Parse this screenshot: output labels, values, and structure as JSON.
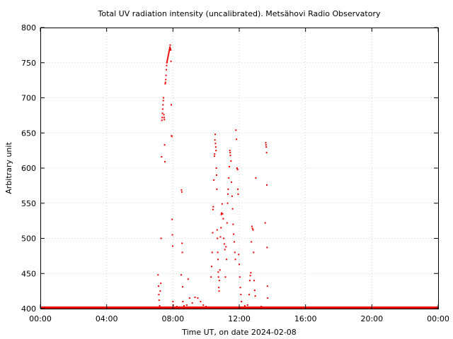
{
  "chart_data": {
    "type": "scatter",
    "title": "Total UV radiation intensity (uncalibrated). Metsähovi Radio Observatory",
    "xlabel": "Time UT, on date 2024-02-08",
    "ylabel": "Arbitrary unit",
    "xlim": [
      "00:00",
      "24:00"
    ],
    "ylim": [
      400,
      800
    ],
    "grid": true,
    "x_ticks": [
      "00:00",
      "04:00",
      "08:00",
      "12:00",
      "16:00",
      "20:00",
      "00:00"
    ],
    "y_ticks": [
      "400",
      "450",
      "500",
      "550",
      "600",
      "650",
      "700",
      "750",
      "800"
    ],
    "series": [
      {
        "color": "#ee0000",
        "baseline": {
          "value": 400,
          "from": "00:00",
          "to": "24:00"
        },
        "points": [
          [
            "07:06",
            448
          ],
          [
            "07:08",
            432
          ],
          [
            "07:09",
            420
          ],
          [
            "07:10",
            412
          ],
          [
            "07:12",
            404
          ],
          [
            "07:14",
            425
          ],
          [
            "07:16",
            436
          ],
          [
            "07:17",
            500
          ],
          [
            "07:19",
            616
          ],
          [
            "07:20",
            668
          ],
          [
            "07:21",
            672
          ],
          [
            "07:22",
            678
          ],
          [
            "07:23",
            684
          ],
          [
            "07:24",
            690
          ],
          [
            "07:25",
            696
          ],
          [
            "07:26",
            700
          ],
          [
            "07:27",
            676
          ],
          [
            "07:28",
            672
          ],
          [
            "07:29",
            669
          ],
          [
            "07:30",
            633
          ],
          [
            "07:31",
            609
          ],
          [
            "07:32",
            720
          ],
          [
            "07:33",
            722
          ],
          [
            "07:34",
            726
          ],
          [
            "07:35",
            732
          ],
          [
            "07:36",
            740
          ],
          [
            "07:37",
            746
          ],
          [
            "07:38",
            750
          ],
          [
            "07:39",
            752
          ],
          [
            "07:40",
            754
          ],
          [
            "07:41",
            756
          ],
          [
            "07:42",
            758
          ],
          [
            "07:43",
            760
          ],
          [
            "07:44",
            762
          ],
          [
            "07:45",
            764
          ],
          [
            "07:46",
            766
          ],
          [
            "07:47",
            768
          ],
          [
            "07:48",
            770
          ],
          [
            "07:49",
            772
          ],
          [
            "07:50",
            775
          ],
          [
            "07:51",
            770
          ],
          [
            "07:52",
            768
          ],
          [
            "07:53",
            752
          ],
          [
            "07:54",
            690
          ],
          [
            "07:55",
            646
          ],
          [
            "07:56",
            645
          ],
          [
            "07:57",
            527
          ],
          [
            "07:58",
            505
          ],
          [
            "07:59",
            489
          ],
          [
            "08:00",
            410
          ],
          [
            "08:01",
            405
          ],
          [
            "08:10",
            402
          ],
          [
            "08:14",
            403
          ],
          [
            "08:30",
            448
          ],
          [
            "08:31",
            569
          ],
          [
            "08:32",
            566
          ],
          [
            "08:33",
            493
          ],
          [
            "08:34",
            480
          ],
          [
            "08:35",
            431
          ],
          [
            "08:36",
            410
          ],
          [
            "08:40",
            404
          ],
          [
            "08:50",
            405
          ],
          [
            "08:55",
            442
          ],
          [
            "09:00",
            415
          ],
          [
            "09:10",
            408
          ],
          [
            "09:20",
            416
          ],
          [
            "09:30",
            415
          ],
          [
            "09:40",
            410
          ],
          [
            "09:50",
            405
          ],
          [
            "10:00",
            403
          ],
          [
            "10:10",
            402
          ],
          [
            "10:18",
            445
          ],
          [
            "10:20",
            460
          ],
          [
            "10:22",
            480
          ],
          [
            "10:24",
            508
          ],
          [
            "10:25",
            541
          ],
          [
            "10:26",
            545
          ],
          [
            "10:28",
            583
          ],
          [
            "10:30",
            617
          ],
          [
            "10:31",
            620
          ],
          [
            "10:32",
            640
          ],
          [
            "10:33",
            648
          ],
          [
            "10:34",
            635
          ],
          [
            "10:35",
            630
          ],
          [
            "10:36",
            625
          ],
          [
            "10:37",
            600
          ],
          [
            "10:38",
            590
          ],
          [
            "10:39",
            570
          ],
          [
            "10:40",
            512
          ],
          [
            "10:41",
            500
          ],
          [
            "10:42",
            480
          ],
          [
            "10:43",
            470
          ],
          [
            "10:44",
            452
          ],
          [
            "10:45",
            445
          ],
          [
            "10:46",
            430
          ],
          [
            "10:47",
            425
          ],
          [
            "10:48",
            440
          ],
          [
            "10:50",
            455
          ],
          [
            "10:52",
            502
          ],
          [
            "10:54",
            515
          ],
          [
            "10:55",
            534
          ],
          [
            "10:56",
            536
          ],
          [
            "10:58",
            549
          ],
          [
            "11:00",
            535
          ],
          [
            "11:02",
            528
          ],
          [
            "11:04",
            500
          ],
          [
            "11:06",
            492
          ],
          [
            "11:08",
            484
          ],
          [
            "11:10",
            445
          ],
          [
            "11:12",
            488
          ],
          [
            "11:14",
            470
          ],
          [
            "11:16",
            522
          ],
          [
            "11:18",
            550
          ],
          [
            "11:19",
            563
          ],
          [
            "11:20",
            570
          ],
          [
            "11:22",
            586
          ],
          [
            "11:24",
            602
          ],
          [
            "11:26",
            625
          ],
          [
            "11:27",
            622
          ],
          [
            "11:28",
            618
          ],
          [
            "11:30",
            610
          ],
          [
            "11:32",
            580
          ],
          [
            "11:34",
            560
          ],
          [
            "11:36",
            542
          ],
          [
            "11:38",
            520
          ],
          [
            "11:40",
            506
          ],
          [
            "11:42",
            495
          ],
          [
            "11:44",
            480
          ],
          [
            "11:46",
            470
          ],
          [
            "11:48",
            654
          ],
          [
            "11:50",
            641
          ],
          [
            "11:52",
            600
          ],
          [
            "11:54",
            598
          ],
          [
            "11:55",
            570
          ],
          [
            "11:56",
            563
          ],
          [
            "11:58",
            477
          ],
          [
            "12:00",
            463
          ],
          [
            "12:02",
            445
          ],
          [
            "12:04",
            430
          ],
          [
            "12:06",
            420
          ],
          [
            "12:08",
            410
          ],
          [
            "12:10",
            402
          ],
          [
            "12:20",
            404
          ],
          [
            "12:30",
            405
          ],
          [
            "12:36",
            420
          ],
          [
            "12:38",
            440
          ],
          [
            "12:40",
            447
          ],
          [
            "12:42",
            451
          ],
          [
            "12:44",
            495
          ],
          [
            "12:46",
            517
          ],
          [
            "12:48",
            514
          ],
          [
            "12:50",
            512
          ],
          [
            "12:52",
            480
          ],
          [
            "12:54",
            440
          ],
          [
            "12:56",
            426
          ],
          [
            "12:58",
            418
          ],
          [
            "13:00",
            586
          ],
          [
            "13:10",
            402
          ],
          [
            "13:20",
            403
          ],
          [
            "13:34",
            522
          ],
          [
            "13:36",
            636
          ],
          [
            "13:37",
            633
          ],
          [
            "13:38",
            630
          ],
          [
            "13:39",
            622
          ],
          [
            "13:40",
            576
          ],
          [
            "13:41",
            487
          ],
          [
            "13:42",
            432
          ],
          [
            "13:43",
            415
          ]
        ]
      }
    ]
  }
}
